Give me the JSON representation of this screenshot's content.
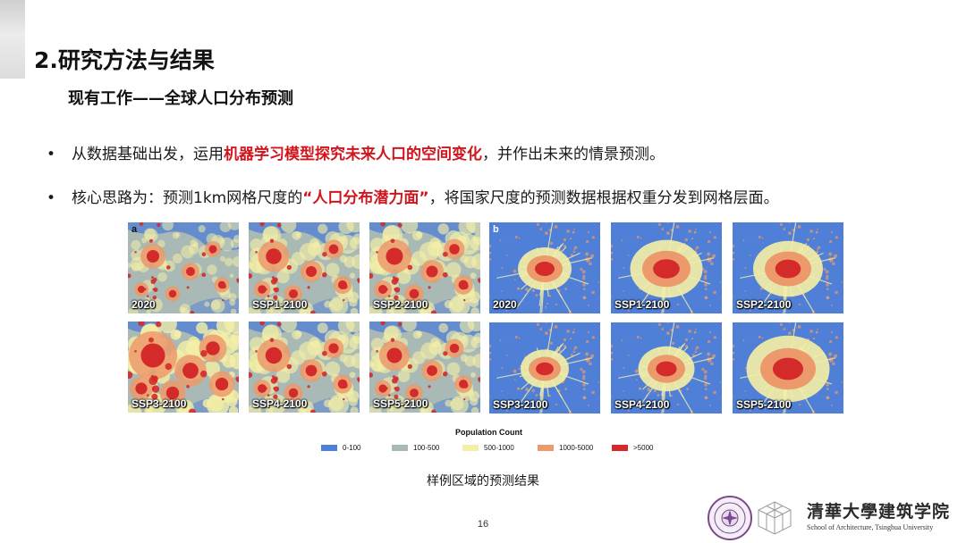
{
  "section_title": "2.研究方法与结果",
  "sub_title": "现有工作——全球人口分布预测",
  "bullets": [
    {
      "marker": "•",
      "pre": "从数据基础出发，运用",
      "highlight": "机器学习模型探究未来人口的空间变化",
      "post": "，并作出未来的情景预测。"
    },
    {
      "marker": "•",
      "pre": "核心思路为：预测1km网格尺度的",
      "highlight": "“人口分布潜力面”",
      "post": "，将国家尺度的预测数据根据权重分发到网格层面。"
    }
  ],
  "figure": {
    "group_a": {
      "letter": "a",
      "panels": [
        "2020",
        "SSP1-2100",
        "SSP2-2100",
        "SSP3-2100",
        "SSP4-2100",
        "SSP5-2100"
      ]
    },
    "group_b": {
      "letter": "b",
      "panels": [
        "2020",
        "SSP1-2100",
        "SSP2-2100",
        "SSP3-2100",
        "SSP4-2100",
        "SSP5-2100"
      ]
    },
    "legend": {
      "title": "Population Count",
      "items": [
        {
          "label": "0-100",
          "color": "#4f7fd6"
        },
        {
          "label": "100-500",
          "color": "#a9b9b6"
        },
        {
          "label": "500-1000",
          "color": "#f4efa6"
        },
        {
          "label": "1000-5000",
          "color": "#ec9a6b"
        },
        {
          "label": ">5000",
          "color": "#d42a2a"
        }
      ]
    }
  },
  "caption": "样例区域的预测结果",
  "page_number": "16",
  "logo": {
    "name": "清華大學建筑学院",
    "subtitle": "School of Architecture, Tsinghua University"
  },
  "colors": {
    "highlight": "#d0151d"
  }
}
